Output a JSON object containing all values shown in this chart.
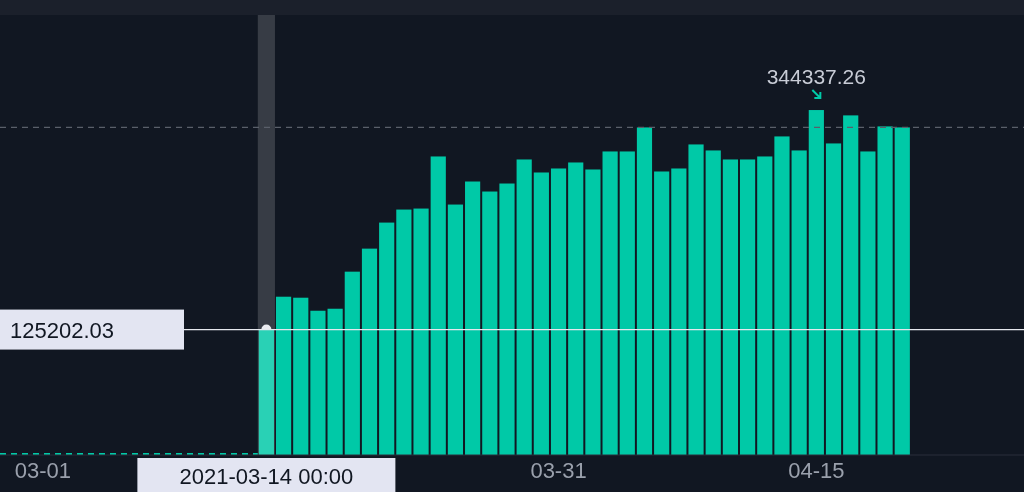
{
  "chart_data": {
    "type": "bar",
    "x": [
      "2021-03-14",
      "2021-03-15",
      "2021-03-16",
      "2021-03-17",
      "2021-03-18",
      "2021-03-19",
      "2021-03-20",
      "2021-03-21",
      "2021-03-22",
      "2021-03-23",
      "2021-03-24",
      "2021-03-25",
      "2021-03-26",
      "2021-03-27",
      "2021-03-28",
      "2021-03-29",
      "2021-03-30",
      "2021-03-31",
      "2021-04-01",
      "2021-04-02",
      "2021-04-03",
      "2021-04-04",
      "2021-04-05",
      "2021-04-06",
      "2021-04-07",
      "2021-04-08",
      "2021-04-09",
      "2021-04-10",
      "2021-04-11",
      "2021-04-12",
      "2021-04-13",
      "2021-04-14",
      "2021-04-15",
      "2021-04-16",
      "2021-04-17",
      "2021-04-18",
      "2021-04-19",
      "2021-04-20"
    ],
    "series": [
      {
        "color": "#00c9a7",
        "values": [
          125202.03,
          158000,
          157000,
          144000,
          146000,
          183000,
          206000,
          232000,
          245000,
          246000,
          298000,
          250000,
          273000,
          263000,
          271000,
          295000,
          282000,
          286000,
          292000,
          285000,
          303000,
          303000,
          327000,
          283000,
          286000,
          310000,
          304000,
          295000,
          295000,
          298000,
          318000,
          304000,
          344337.26,
          311000,
          339000,
          303000,
          328000,
          327000
        ],
        "value_labels": [
          null,
          null,
          null,
          null,
          null,
          null,
          null,
          null,
          null,
          null,
          null,
          null,
          null,
          null,
          null,
          null,
          null,
          null,
          null,
          null,
          null,
          null,
          null,
          null,
          null,
          null,
          null,
          null,
          null,
          null,
          null,
          null,
          "344337.26",
          null,
          null,
          null,
          null,
          null
        ]
      }
    ],
    "xlim": [
      "2021-02-26T12:00",
      "2021-04-27T02:00"
    ],
    "xticks": [
      {
        "value": "2021-03-01",
        "label": "03-01"
      },
      {
        "value": "2021-03-31",
        "label": "03-31"
      },
      {
        "value": "2021-04-15",
        "label": "04-15"
      }
    ],
    "tick_labels": "x",
    "ref_lines": [
      {
        "axis": "y",
        "value": 327000,
        "label": null,
        "color": "#5a5f6a",
        "line_style": "dashed"
      },
      {
        "axis": "y",
        "value": 125202.03,
        "label": "125202.03",
        "color": "#e6e8ee",
        "line_style": "solid"
      },
      {
        "axis": "x",
        "value": "2021-03-14",
        "label": "2021-03-14 00:00",
        "color": "#ffffff",
        "line_style": "solid"
      }
    ]
  }
}
